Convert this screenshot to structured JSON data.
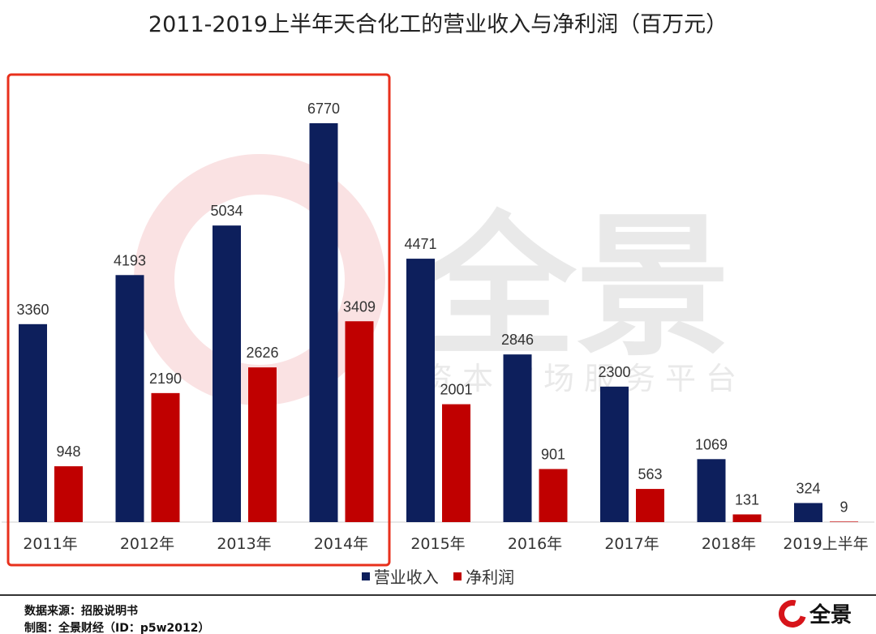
{
  "chart_data": {
    "type": "bar",
    "title": "2011-2019上半年天合化工的营业收入与净利润（百万元）",
    "categories": [
      "2011年",
      "2012年",
      "2013年",
      "2014年",
      "2015年",
      "2016年",
      "2017年",
      "2018年",
      "2019上半年"
    ],
    "series": [
      {
        "name": "营业收入",
        "color": "#0d1f5c",
        "values": [
          3360,
          4193,
          5034,
          6770,
          4471,
          2846,
          2300,
          1069,
          324
        ]
      },
      {
        "name": "净利润",
        "color": "#c00000",
        "values": [
          948,
          2190,
          2626,
          3409,
          2001,
          901,
          563,
          131,
          9
        ]
      }
    ],
    "ylim": [
      0,
      7000
    ],
    "grid": false,
    "legend": "bottom",
    "highlight": {
      "from": "2011年",
      "to": "2014年",
      "color": "#e8301c"
    }
  },
  "watermark": {
    "text": "全景",
    "subtitle": "资本市场服务平台"
  },
  "footer": {
    "source": "数据来源：招股说明书",
    "credit": "制图：全景财经（ID：p5w2012）",
    "logo_text": "全景"
  }
}
